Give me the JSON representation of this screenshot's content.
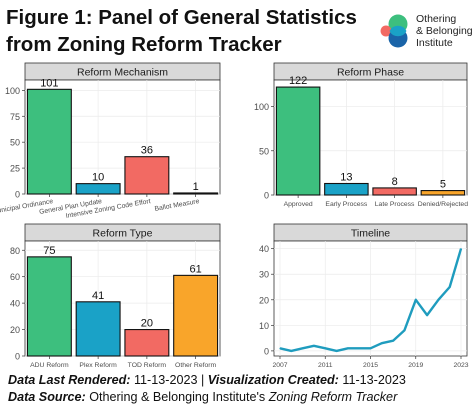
{
  "header": {
    "title_line1": "Figure 1: Panel of General Statistics",
    "title_line2": "from Zoning Reform Tracker",
    "org_line1": "Othering",
    "org_line2": "& Belonging",
    "org_line3": "Institute"
  },
  "colors": {
    "green": "#3dbf7e",
    "blue": "#1aa2c7",
    "red": "#f26a63",
    "orange": "#f9a52a",
    "line": "#1f9cbe",
    "logo_dark_blue": "#1a64a8"
  },
  "chart_data": [
    {
      "type": "bar",
      "title": "Reform Mechanism",
      "categories": [
        "Municipal Ordinance",
        "General Plan Update",
        "Intensive Zoning Code Effort",
        "Ballot Measure"
      ],
      "values": [
        101,
        10,
        36,
        1
      ],
      "value_labels": [
        "101",
        "10",
        "36",
        "1"
      ],
      "yticks": [
        "0",
        "25",
        "50",
        "75",
        "100"
      ],
      "ylim": [
        0,
        110
      ],
      "bar_colors": [
        "#3dbf7e",
        "#1aa2c7",
        "#f26a63",
        "#3b3b3b"
      ],
      "grid": true
    },
    {
      "type": "bar",
      "title": "Reform Phase",
      "categories": [
        "Approved",
        "Early Process",
        "Late Process",
        "Denied/Rejected"
      ],
      "values": [
        122,
        13,
        8,
        5
      ],
      "value_labels": [
        "122",
        "13",
        "8",
        "5"
      ],
      "yticks": [
        "0",
        "50",
        "100"
      ],
      "ylim": [
        0,
        130
      ],
      "bar_colors": [
        "#3dbf7e",
        "#1aa2c7",
        "#f26a63",
        "#f9a52a"
      ],
      "grid": true
    },
    {
      "type": "bar",
      "title": "Reform Type",
      "categories": [
        "ADU Reform",
        "Plex Reform",
        "TOD Reform",
        "Other Reform"
      ],
      "values": [
        75,
        41,
        20,
        61
      ],
      "value_labels": [
        "75",
        "41",
        "20",
        "61"
      ],
      "yticks": [
        "0",
        "20",
        "40",
        "60",
        "80"
      ],
      "ylim": [
        0,
        87
      ],
      "bar_colors": [
        "#3dbf7e",
        "#1aa2c7",
        "#f26a63",
        "#f9a52a"
      ],
      "grid": true
    },
    {
      "type": "line",
      "title": "Timeline",
      "x": [
        2007,
        2008,
        2009,
        2010,
        2011,
        2012,
        2013,
        2014,
        2015,
        2016,
        2017,
        2018,
        2019,
        2020,
        2021,
        2022,
        2023
      ],
      "y": [
        1,
        0,
        1,
        2,
        1,
        0,
        1,
        1,
        1,
        3,
        4,
        8,
        20,
        14,
        20,
        25,
        40
      ],
      "xticks": [
        "2007",
        "2011",
        "2015",
        "2019",
        "2023"
      ],
      "yticks": [
        "0",
        "10",
        "20",
        "30",
        "40"
      ],
      "xlim": [
        2007,
        2023
      ],
      "ylim": [
        -2,
        43
      ],
      "grid": true
    }
  ],
  "footer": {
    "rendered_label": "Data Last Rendered:",
    "rendered_value": "11-13-2023",
    "separator": "|",
    "created_label": "Visualization Created:",
    "created_value": "11-13-2023",
    "source_label": "Data Source:",
    "source_prefix": "Othering & Belonging Institute's",
    "source_name": "Zoning Reform Tracker"
  }
}
